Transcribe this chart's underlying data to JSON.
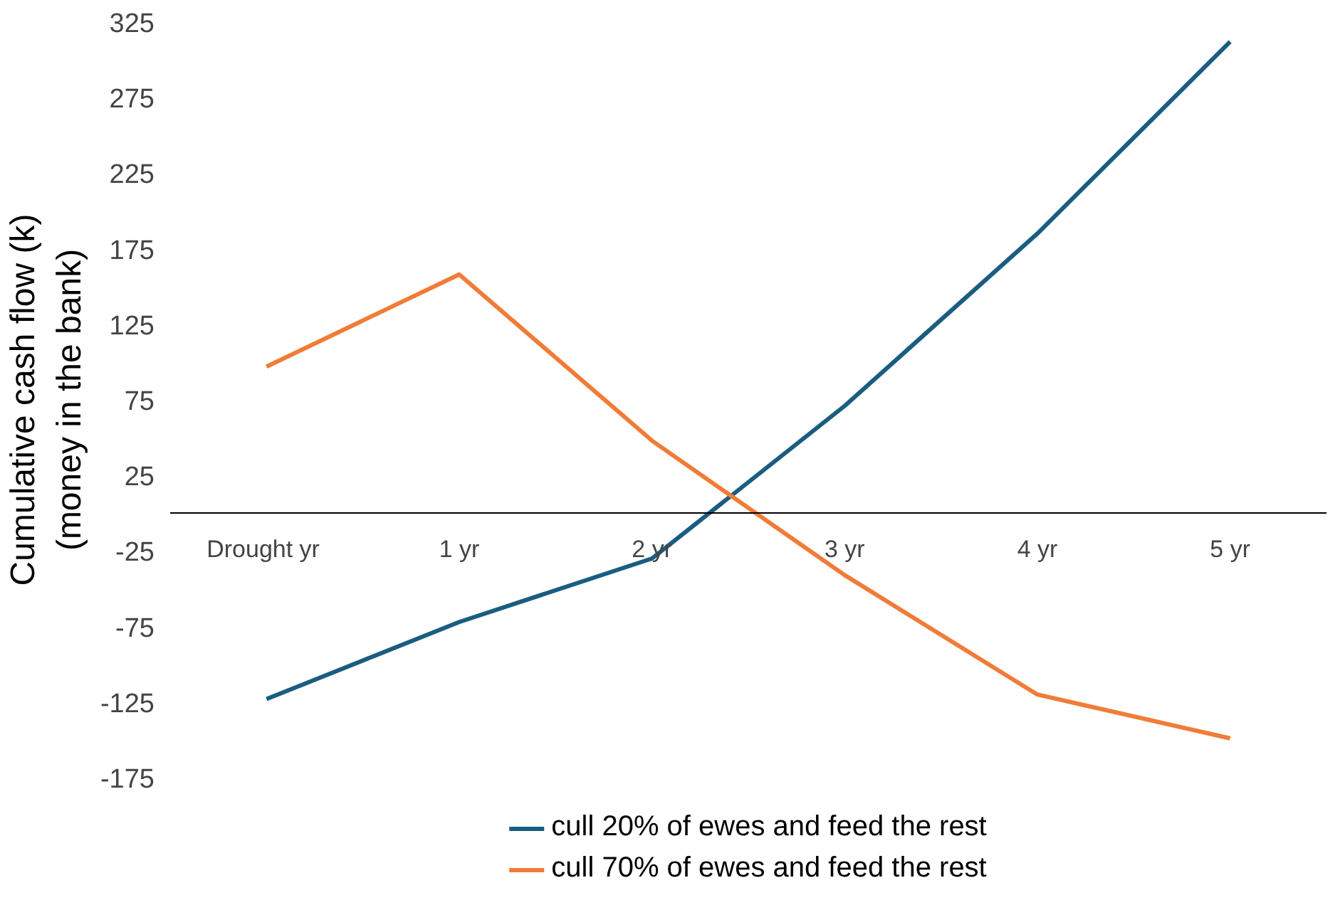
{
  "chart_data": {
    "type": "line",
    "ylabel": "Cumulative cash flow (k)\n(money in the bank)",
    "categories": [
      "Drought  yr",
      "1 yr",
      "2 yr",
      "3 yr",
      "4 yr",
      "5 yr"
    ],
    "series": [
      {
        "name": "cull 20% of ewes and feed the rest",
        "color": "#1a5d80",
        "values": [
          -123,
          -72,
          -30,
          71,
          185,
          312
        ]
      },
      {
        "name": "cull 70% of ewes and feed the rest",
        "color": "#f07c38",
        "values": [
          97,
          158,
          48,
          -41,
          -120,
          -149
        ]
      }
    ],
    "ylim": [
      -175,
      325
    ],
    "yticks": [
      -175,
      -125,
      -75,
      -25,
      25,
      75,
      125,
      175,
      225,
      275,
      325
    ],
    "grid": false,
    "legend": "bottom",
    "marker": "none",
    "line_style": "solid"
  }
}
